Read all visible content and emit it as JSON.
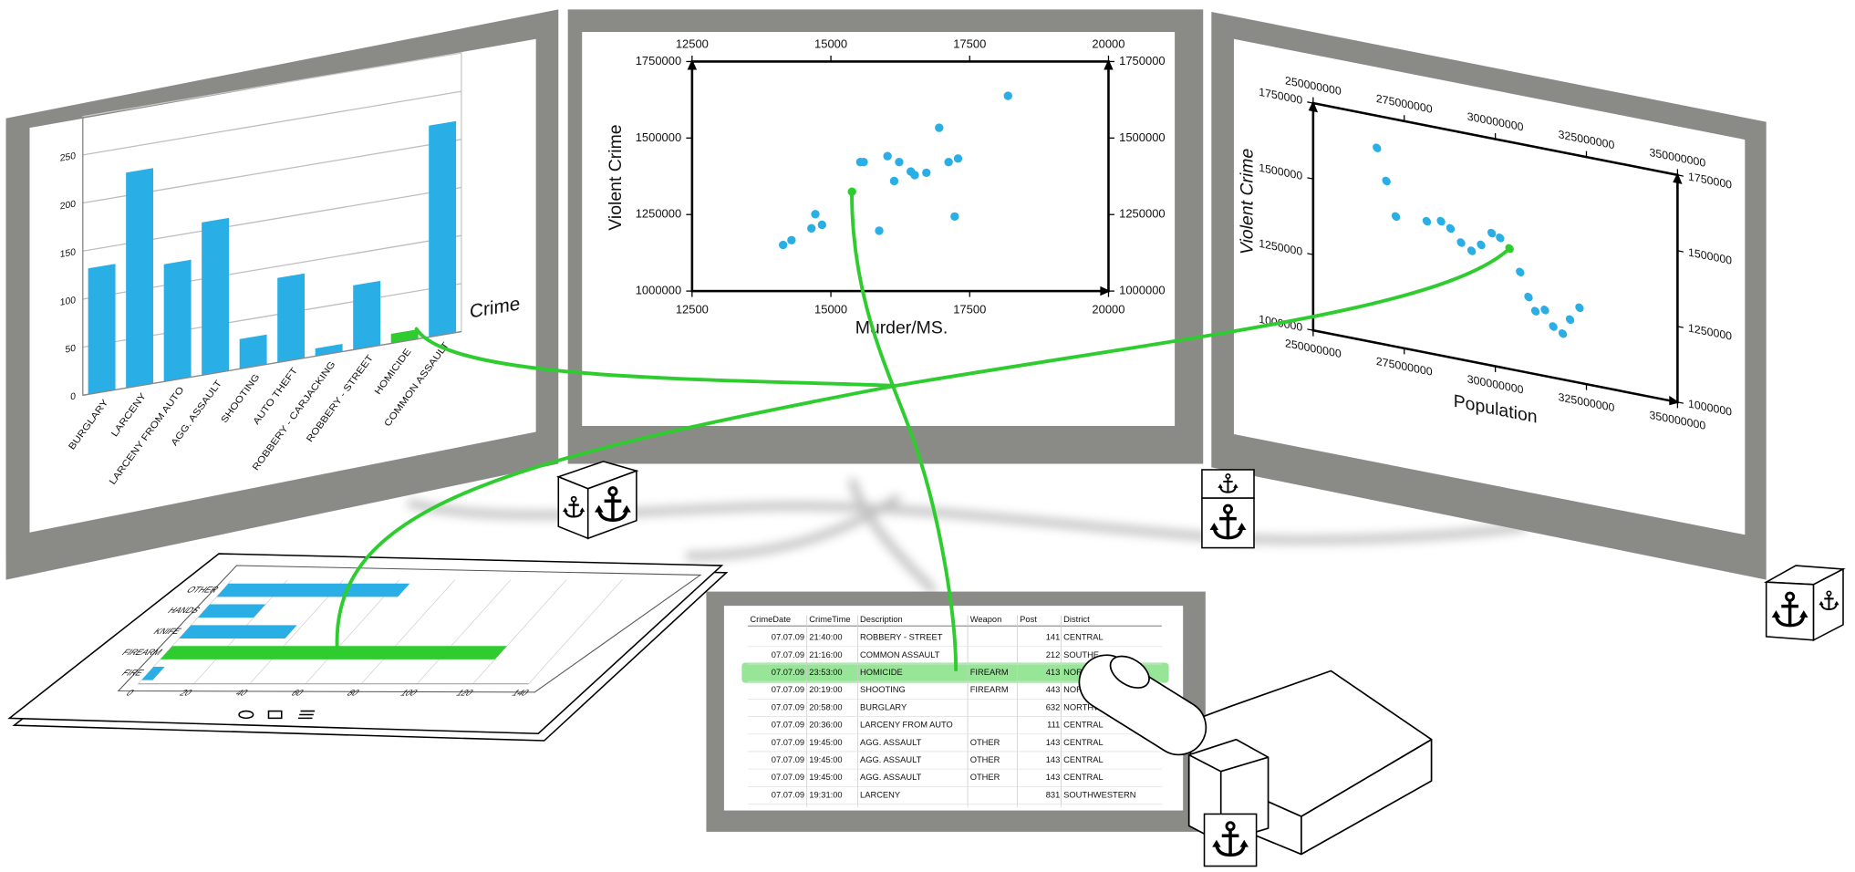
{
  "chart_data": [
    {
      "type": "bar",
      "categories": [
        "BURGLARY",
        "LARCENY",
        "LARCENY FROM AUTO",
        "AGG. ASSAULT",
        "SHOOTING",
        "AUTO THEFT",
        "ROBBERY - CARJACKING",
        "ROBBERY - STREET",
        "HOMICIDE",
        "COMMON ASSAULT"
      ],
      "values": [
        131,
        224,
        122,
        159,
        31,
        88,
        8,
        67,
        10,
        220
      ],
      "color": "#29aee6",
      "highlight_index": 8,
      "highlight_color": "#2fcc2f",
      "xlabel": "Crime",
      "ylim": [
        0,
        290
      ],
      "yticks": [
        0,
        50,
        100,
        150,
        200,
        250
      ],
      "grid": true
    },
    {
      "type": "scatter",
      "xlabel": "Murder/MS.",
      "ylabel": "Violent Crime",
      "x": [
        14140,
        14290,
        14650,
        14720,
        14840,
        15380,
        15530,
        15590,
        15870,
        16020,
        16140,
        16230,
        16440,
        16510,
        16720,
        16950,
        17120,
        17230,
        17290,
        18190
      ],
      "values": [
        1150800,
        1166200,
        1204900,
        1251300,
        1216500,
        1324700,
        1421400,
        1421400,
        1197200,
        1440700,
        1359500,
        1421400,
        1390500,
        1378900,
        1386600,
        1533500,
        1421400,
        1243600,
        1433000,
        1637900
      ],
      "color": "#29aee6",
      "highlight_index": 5,
      "highlight_color": "#2fcc2f",
      "xlim": [
        12500,
        20000
      ],
      "xticks": [
        12500,
        15000,
        17500,
        20000
      ],
      "ylim": [
        1000000,
        1750000
      ],
      "yticks": [
        1000000,
        1250000,
        1500000,
        1750000
      ]
    },
    {
      "type": "scatter",
      "xlabel": "Population",
      "ylabel": "Violent Crime",
      "x": [
        267500000,
        270100000,
        272700000,
        281200000,
        285100000,
        287700000,
        290600000,
        293500000,
        296100000,
        299000000,
        301300000,
        303900000,
        306800000,
        309100000,
        311000000,
        313600000,
        315900000,
        318500000,
        320500000,
        323100000
      ],
      "values": [
        1643800,
        1540600,
        1429700,
        1434000,
        1443400,
        1425800,
        1385900,
        1365600,
        1391400,
        1437100,
        1427000,
        1398000,
        1327000,
        1250000,
        1207800,
        1218000,
        1168800,
        1151600,
        1202700,
        1248000
      ],
      "color": "#29aee6",
      "highlight_index": 11,
      "highlight_color": "#2fcc2f",
      "xlim": [
        250000000,
        350000000
      ],
      "xticks": [
        250000000,
        275000000,
        300000000,
        325000000,
        350000000
      ],
      "ylim": [
        1000000,
        1750000
      ],
      "yticks": [
        1000000,
        1250000,
        1500000,
        1750000
      ]
    },
    {
      "type": "hbar",
      "categories": [
        "OTHER",
        "HANDS",
        "KNIFE",
        "FIREARM",
        "FIRE"
      ],
      "values": [
        65,
        20,
        38,
        120,
        4
      ],
      "color": "#29aee6",
      "highlight_index": 3,
      "highlight_color": "#2fcc2f",
      "xlim": [
        0,
        140
      ],
      "xticks": [
        0,
        20,
        40,
        60,
        80,
        100,
        120,
        140
      ],
      "grid": true
    }
  ],
  "table": {
    "columns": [
      "CrimeDate",
      "CrimeTime",
      "Description",
      "Weapon",
      "Post",
      "District"
    ],
    "rows": [
      [
        "07.07.09",
        "21:40:00",
        "ROBBERY - STREET",
        null,
        141,
        "CENTRAL"
      ],
      [
        "07.07.09",
        "21:16:00",
        "COMMON ASSAULT",
        null,
        212,
        "SOUTHE"
      ],
      [
        "07.07.09",
        "23:53:00",
        "HOMICIDE",
        "FIREARM",
        413,
        "NORTHE"
      ],
      [
        "07.07.09",
        "20:19:00",
        "SHOOTING",
        "FIREARM",
        443,
        "NORTHE"
      ],
      [
        "07.07.09",
        "20:58:00",
        "BURGLARY",
        null,
        632,
        "NORTHW"
      ],
      [
        "07.07.09",
        "20:36:00",
        "LARCENY FROM AUTO",
        null,
        111,
        "CENTRAL"
      ],
      [
        "07.07.09",
        "19:45:00",
        "AGG. ASSAULT",
        "OTHER",
        143,
        "CENTRAL"
      ],
      [
        "07.07.09",
        "19:45:00",
        "AGG. ASSAULT",
        "OTHER",
        143,
        "CENTRAL"
      ],
      [
        "07.07.09",
        "19:45:00",
        "AGG. ASSAULT",
        "OTHER",
        143,
        "CENTRAL"
      ],
      [
        "07.07.09",
        "19:31:00",
        "LARCENY",
        null,
        831,
        "SOUTHWESTERN"
      ]
    ],
    "highlight_row": 2,
    "highlight_color": "#2fcc2f"
  }
}
